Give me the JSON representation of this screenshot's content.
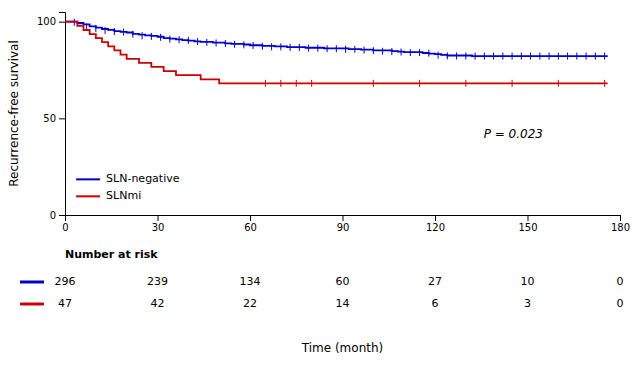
{
  "chart_data": {
    "type": "step",
    "xlabel": "Time (month)",
    "ylabel": "Recurrence-free survival",
    "xlim": [
      0,
      180
    ],
    "ylim": [
      0,
      105
    ],
    "xticks": [
      0,
      30,
      60,
      90,
      120,
      150,
      180
    ],
    "yticks": [
      0,
      50,
      100
    ],
    "grid": false,
    "legend": "lower left",
    "annotations": [
      {
        "text": "P = 0.023",
        "x": 155,
        "y": 40
      }
    ],
    "series": [
      {
        "name": "SLN-negative",
        "color": "#0000CC",
        "x": [
          0,
          2,
          4,
          6,
          8,
          10,
          12,
          14,
          16,
          18,
          20,
          22,
          24,
          26,
          28,
          30,
          32,
          34,
          36,
          38,
          40,
          42,
          44,
          46,
          48,
          50,
          52,
          54,
          56,
          58,
          60,
          62,
          64,
          66,
          68,
          70,
          72,
          74,
          76,
          78,
          80,
          82,
          84,
          86,
          88,
          90,
          92,
          94,
          96,
          98,
          100,
          102,
          104,
          106,
          108,
          110,
          112,
          114,
          116,
          118,
          120,
          122,
          124,
          126,
          128,
          130,
          132,
          134,
          136,
          138,
          140,
          142,
          144,
          146,
          148,
          150,
          152,
          154,
          156,
          158,
          160,
          162,
          164,
          166,
          168,
          170,
          172,
          174,
          176
        ],
        "values": [
          100,
          100,
          99.3,
          98.6,
          97.6,
          96.9,
          96.2,
          95.8,
          95.1,
          94.7,
          94.4,
          93.7,
          93.3,
          92.9,
          92.6,
          92.2,
          91.5,
          91.2,
          90.8,
          90.5,
          90.2,
          89.8,
          89.5,
          89.5,
          89.2,
          89.2,
          88.8,
          88.5,
          88.5,
          88.2,
          87.8,
          87.8,
          87.5,
          87.5,
          87.2,
          87.2,
          86.8,
          86.8,
          86.8,
          86.5,
          86.5,
          86.5,
          86.2,
          86.2,
          86.2,
          86.2,
          85.8,
          85.8,
          85.5,
          85.5,
          85.2,
          85.2,
          85.2,
          84.8,
          84.5,
          84.2,
          84.2,
          84.2,
          83.8,
          83.5,
          83.2,
          82.8,
          82.5,
          82.5,
          82.5,
          82.5,
          82.2,
          82.2,
          82.2,
          82.2,
          82.2,
          82.2,
          82.2,
          82.2,
          82.2,
          82.2,
          82.2,
          82.2,
          82.2,
          82.2,
          82.2,
          82.2,
          82.2,
          82.2,
          82.2,
          82.2,
          82.2,
          82.2,
          82.2
        ],
        "censor_x": [
          3,
          7,
          10,
          13,
          16,
          19,
          22,
          25,
          28,
          31,
          34,
          37,
          40,
          43,
          46,
          49,
          52,
          55,
          58,
          61,
          64,
          67,
          70,
          73,
          76,
          79,
          82,
          85,
          88,
          91,
          94,
          97,
          100,
          103,
          106,
          109,
          112,
          115,
          118,
          121,
          124,
          127,
          130,
          133,
          136,
          139,
          142,
          145,
          148,
          151,
          154,
          157,
          160,
          163,
          166,
          169,
          172,
          175
        ],
        "censor_values": [
          99.7,
          97.2,
          96.5,
          95.5,
          94.9,
          94.6,
          93.5,
          92.7,
          92.4,
          91.9,
          91.0,
          90.7,
          90.3,
          89.7,
          89.3,
          89.0,
          88.7,
          88.3,
          88.0,
          87.7,
          87.3,
          87.0,
          87.0,
          86.7,
          86.7,
          86.3,
          86.3,
          86.0,
          86.0,
          85.7,
          85.7,
          85.3,
          85.0,
          84.7,
          84.5,
          84.3,
          84.0,
          84.0,
          83.7,
          82.7,
          82.3,
          82.3,
          82.3,
          82.2,
          82.2,
          82.2,
          82.2,
          82.2,
          82.2,
          82.2,
          82.2,
          82.2,
          82.2,
          82.2,
          82.2,
          82.2,
          82.2,
          82.2
        ],
        "at_risk": [
          296,
          239,
          134,
          60,
          27,
          10,
          0
        ]
      },
      {
        "name": "SLNmi",
        "color": "#CC0000",
        "x": [
          0,
          2,
          4,
          6,
          8,
          10,
          12,
          14,
          16,
          18,
          20,
          22,
          24,
          26,
          28,
          30,
          32,
          34,
          36,
          38,
          40,
          42,
          44,
          46,
          48,
          50,
          52,
          54,
          56,
          58,
          60,
          62,
          64,
          66,
          68,
          70,
          72,
          74,
          76,
          78,
          80,
          82,
          84,
          86,
          88,
          90,
          92,
          94,
          96,
          98,
          100,
          102,
          104,
          106,
          108,
          110,
          112,
          114,
          116,
          118,
          120,
          122,
          124,
          126,
          128,
          130,
          132,
          134,
          136,
          138,
          140,
          142,
          144,
          146,
          148,
          150,
          152,
          154,
          156,
          158,
          160,
          162,
          164,
          166,
          168,
          170,
          172,
          174,
          176
        ],
        "values": [
          100,
          100,
          97.9,
          95.7,
          93.6,
          91.5,
          89.4,
          87.2,
          85.1,
          83.0,
          80.8,
          80.8,
          78.7,
          78.7,
          76.6,
          76.6,
          74.4,
          74.4,
          72.3,
          72.3,
          72.3,
          72.3,
          70.2,
          70.2,
          70.2,
          68.1,
          68.1,
          68.1,
          68.1,
          68.1,
          68.1,
          68.1,
          68.1,
          68.1,
          68.1,
          68.1,
          68.1,
          68.1,
          68.1,
          68.1,
          68.1,
          68.1,
          68.1,
          68.1,
          68.1,
          68.1,
          68.1,
          68.1,
          68.1,
          68.1,
          68.1,
          68.1,
          68.1,
          68.1,
          68.1,
          68.1,
          68.1,
          68.1,
          68.1,
          68.1,
          68.1,
          68.1,
          68.1,
          68.1,
          68.1,
          68.1,
          68.1,
          68.1,
          68.1,
          68.1,
          68.1,
          68.1,
          68.1,
          68.1,
          68.1,
          68.1,
          68.1,
          68.1,
          68.1,
          68.1,
          68.1,
          68.1,
          68.1,
          68.1,
          68.1,
          68.1,
          68.1,
          68.1,
          68.1
        ],
        "censor_x": [
          65,
          70,
          75,
          80,
          100,
          115,
          130,
          145,
          160,
          175
        ],
        "censor_values": [
          68.1,
          68.1,
          68.1,
          68.1,
          68.1,
          68.1,
          68.1,
          68.1,
          68.1,
          68.1
        ],
        "at_risk": [
          47,
          42,
          22,
          14,
          6,
          3,
          0
        ]
      }
    ],
    "risk_table_header": "Number at risk",
    "risk_times": [
      0,
      30,
      60,
      90,
      120,
      150,
      180
    ]
  }
}
